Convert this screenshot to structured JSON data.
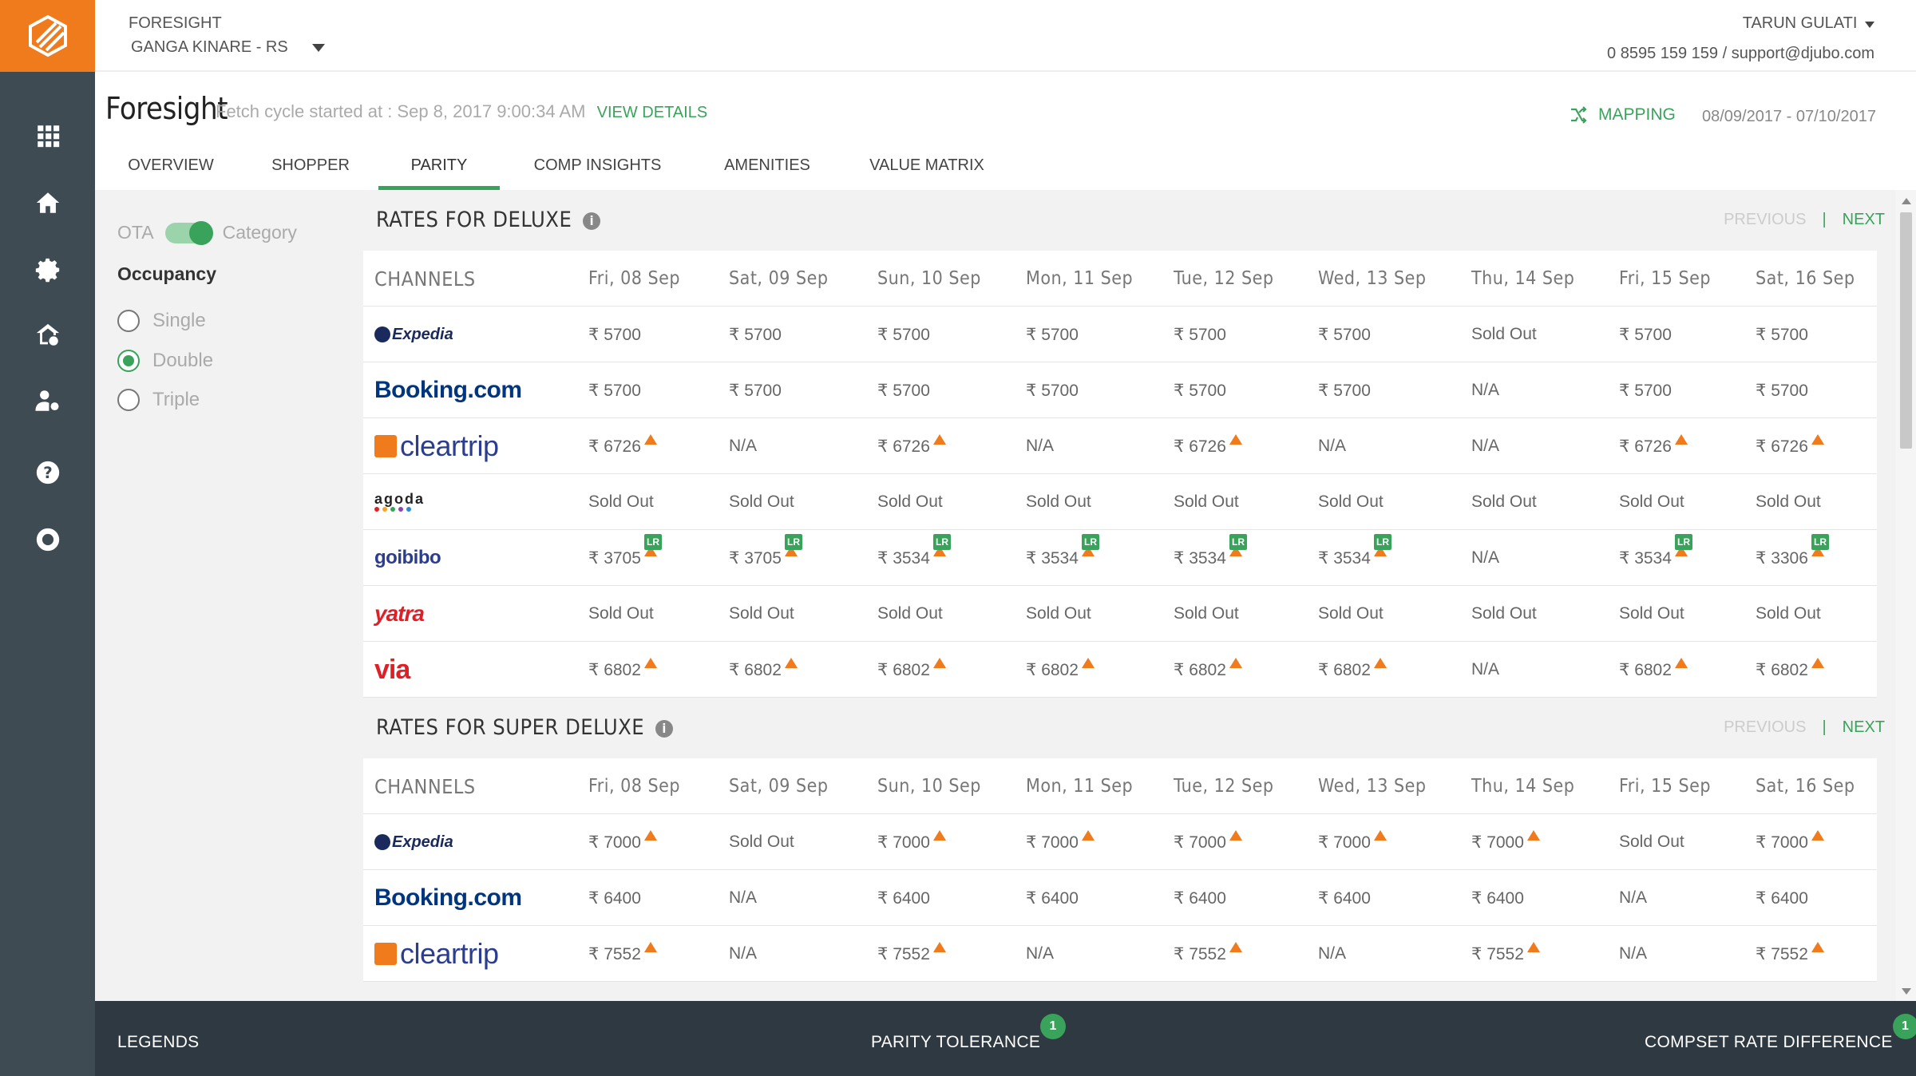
{
  "header": {
    "app_name": "FORESIGHT",
    "property": "GANGA KINARE - RS",
    "user": "TARUN GULATI",
    "contact": "0 8595 159 159 / support@djubo.com"
  },
  "page": {
    "title": "Foresight",
    "fetch_text": "Fetch cycle started at : Sep 8, 2017 9:00:34 AM",
    "view_details": "VIEW DETAILS",
    "mapping": "MAPPING",
    "date_range": "08/09/2017 - 07/10/2017"
  },
  "tabs": [
    {
      "label": "OVERVIEW"
    },
    {
      "label": "SHOPPER"
    },
    {
      "label": "PARITY"
    },
    {
      "label": "COMP INSIGHTS"
    },
    {
      "label": "AMENITIES"
    },
    {
      "label": "VALUE MATRIX"
    }
  ],
  "filters": {
    "toggle_left": "OTA",
    "toggle_right": "Category",
    "occupancy_title": "Occupancy",
    "options": [
      {
        "label": "Single"
      },
      {
        "label": "Double"
      },
      {
        "label": "Triple"
      }
    ]
  },
  "pager": {
    "previous": "PREVIOUS",
    "separator": "|",
    "next": "NEXT"
  },
  "channels_header": "CHANNELS",
  "days": [
    "Fri, 08 Sep",
    "Sat, 09 Sep",
    "Sun, 10 Sep",
    "Mon, 11 Sep",
    "Tue, 12 Sep",
    "Wed, 13 Sep",
    "Thu, 14 Sep",
    "Fri, 15 Sep",
    "Sat, 16 Sep"
  ],
  "sections": [
    {
      "title": "RATES FOR DELUXE",
      "rows": [
        {
          "channel": "Expedia",
          "logo": "expedia",
          "cells": [
            {
              "t": "₹ 5700"
            },
            {
              "t": "₹ 5700"
            },
            {
              "t": "₹ 5700"
            },
            {
              "t": "₹ 5700"
            },
            {
              "t": "₹ 5700"
            },
            {
              "t": "₹ 5700"
            },
            {
              "t": "Sold Out"
            },
            {
              "t": "₹ 5700"
            },
            {
              "t": "₹ 5700"
            }
          ]
        },
        {
          "channel": "Booking.com",
          "logo": "booking",
          "cells": [
            {
              "t": "₹ 5700"
            },
            {
              "t": "₹ 5700"
            },
            {
              "t": "₹ 5700"
            },
            {
              "t": "₹ 5700"
            },
            {
              "t": "₹ 5700"
            },
            {
              "t": "₹ 5700"
            },
            {
              "t": "N/A"
            },
            {
              "t": "₹ 5700"
            },
            {
              "t": "₹ 5700"
            }
          ]
        },
        {
          "channel": "cleartrip",
          "logo": "cleartrip",
          "cells": [
            {
              "t": "₹ 6726",
              "up": true
            },
            {
              "t": "N/A"
            },
            {
              "t": "₹ 6726",
              "up": true
            },
            {
              "t": "N/A"
            },
            {
              "t": "₹ 6726",
              "up": true
            },
            {
              "t": "N/A"
            },
            {
              "t": "N/A"
            },
            {
              "t": "₹ 6726",
              "up": true
            },
            {
              "t": "₹ 6726",
              "up": true
            }
          ]
        },
        {
          "channel": "agoda",
          "logo": "agoda",
          "cells": [
            {
              "t": "Sold Out"
            },
            {
              "t": "Sold Out"
            },
            {
              "t": "Sold Out"
            },
            {
              "t": "Sold Out"
            },
            {
              "t": "Sold Out"
            },
            {
              "t": "Sold Out"
            },
            {
              "t": "Sold Out"
            },
            {
              "t": "Sold Out"
            },
            {
              "t": "Sold Out"
            }
          ]
        },
        {
          "channel": "goibibo",
          "logo": "goibibo",
          "cells": [
            {
              "t": "₹ 3705",
              "up": true,
              "lr": true
            },
            {
              "t": "₹ 3705",
              "up": true,
              "lr": true
            },
            {
              "t": "₹ 3534",
              "up": true,
              "lr": true
            },
            {
              "t": "₹ 3534",
              "up": true,
              "lr": true
            },
            {
              "t": "₹ 3534",
              "up": true,
              "lr": true
            },
            {
              "t": "₹ 3534",
              "up": true,
              "lr": true
            },
            {
              "t": "N/A"
            },
            {
              "t": "₹ 3534",
              "up": true,
              "lr": true
            },
            {
              "t": "₹ 3306",
              "up": true,
              "lr": true
            }
          ]
        },
        {
          "channel": "yatra",
          "logo": "yatra",
          "cells": [
            {
              "t": "Sold Out"
            },
            {
              "t": "Sold Out"
            },
            {
              "t": "Sold Out"
            },
            {
              "t": "Sold Out"
            },
            {
              "t": "Sold Out"
            },
            {
              "t": "Sold Out"
            },
            {
              "t": "Sold Out"
            },
            {
              "t": "Sold Out"
            },
            {
              "t": "Sold Out"
            }
          ]
        },
        {
          "channel": "via",
          "logo": "via",
          "cells": [
            {
              "t": "₹ 6802",
              "up": true
            },
            {
              "t": "₹ 6802",
              "up": true
            },
            {
              "t": "₹ 6802",
              "up": true
            },
            {
              "t": "₹ 6802",
              "up": true
            },
            {
              "t": "₹ 6802",
              "up": true
            },
            {
              "t": "₹ 6802",
              "up": true
            },
            {
              "t": "N/A"
            },
            {
              "t": "₹ 6802",
              "up": true
            },
            {
              "t": "₹ 6802",
              "up": true
            }
          ]
        }
      ]
    },
    {
      "title": "RATES FOR SUPER DELUXE",
      "rows": [
        {
          "channel": "Expedia",
          "logo": "expedia",
          "cells": [
            {
              "t": "₹ 7000",
              "up": true
            },
            {
              "t": "Sold Out"
            },
            {
              "t": "₹ 7000",
              "up": true
            },
            {
              "t": "₹ 7000",
              "up": true
            },
            {
              "t": "₹ 7000",
              "up": true
            },
            {
              "t": "₹ 7000",
              "up": true
            },
            {
              "t": "₹ 7000",
              "up": true
            },
            {
              "t": "Sold Out"
            },
            {
              "t": "₹ 7000",
              "up": true
            }
          ]
        },
        {
          "channel": "Booking.com",
          "logo": "booking",
          "cells": [
            {
              "t": "₹ 6400"
            },
            {
              "t": "N/A"
            },
            {
              "t": "₹ 6400"
            },
            {
              "t": "₹ 6400"
            },
            {
              "t": "₹ 6400"
            },
            {
              "t": "₹ 6400"
            },
            {
              "t": "₹ 6400"
            },
            {
              "t": "N/A"
            },
            {
              "t": "₹ 6400"
            }
          ]
        },
        {
          "channel": "cleartrip",
          "logo": "cleartrip",
          "cells": [
            {
              "t": "₹ 7552",
              "up": true
            },
            {
              "t": "N/A"
            },
            {
              "t": "₹ 7552",
              "up": true
            },
            {
              "t": "N/A"
            },
            {
              "t": "₹ 7552",
              "up": true
            },
            {
              "t": "N/A"
            },
            {
              "t": "₹ 7552",
              "up": true
            },
            {
              "t": "N/A"
            },
            {
              "t": "₹ 7552",
              "up": true
            }
          ]
        }
      ]
    }
  ],
  "badge_text": "LR",
  "footer": {
    "legends": "LEGENDS",
    "parity_tolerance": "PARITY TOLERANCE",
    "parity_badge": "1",
    "compset": "COMPSET RATE DIFFERENCE",
    "compset_badge": "1"
  },
  "colors": {
    "accent": "#3aa35b",
    "brand": "#f07b1d",
    "sidebar": "#3f4b53",
    "footer": "#2f3941"
  }
}
